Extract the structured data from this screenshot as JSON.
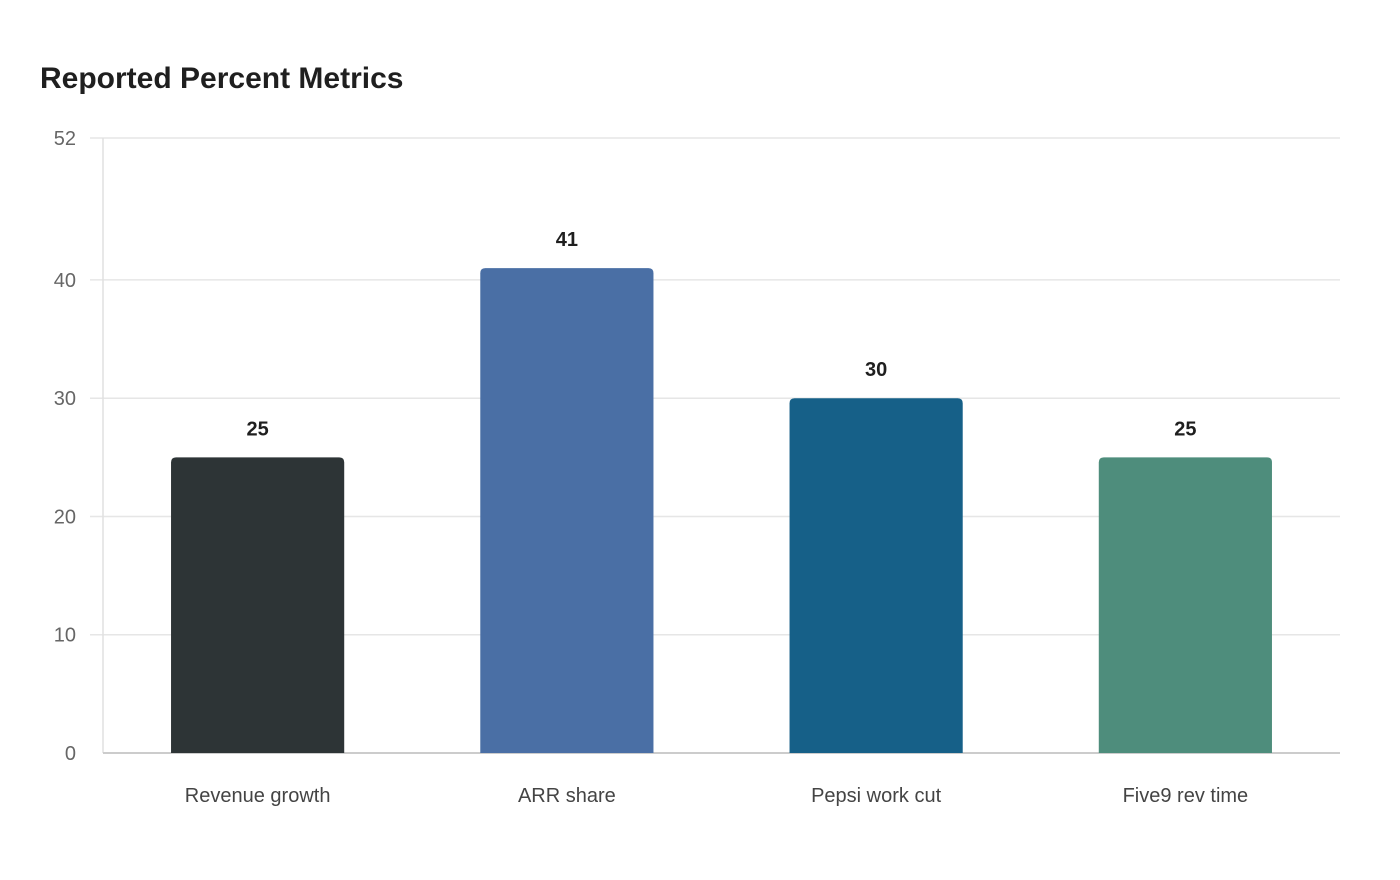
{
  "chart_data": {
    "type": "bar",
    "title": "Reported Percent Metrics",
    "xlabel": "",
    "ylabel": "",
    "categories": [
      "Revenue growth",
      "ARR share",
      "Pepsi work cut",
      "Five9 rev time"
    ],
    "values": [
      25,
      41,
      30,
      25
    ],
    "value_labels": [
      "25",
      "41",
      "30",
      "25"
    ],
    "colors": [
      "#2d3436",
      "#4a6fa5",
      "#166088",
      "#4e8d7c"
    ],
    "ylim": [
      0,
      52
    ],
    "yticks": [
      0,
      10,
      20,
      30,
      40,
      52
    ],
    "grid": true,
    "legend": "none"
  }
}
